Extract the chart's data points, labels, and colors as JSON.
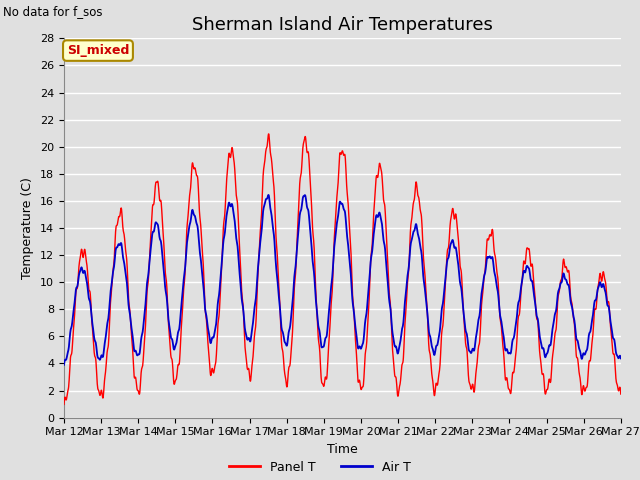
{
  "title": "Sherman Island Air Temperatures",
  "subtitle": "No data for f_sos",
  "xlabel": "Time",
  "ylabel": "Temperature (C)",
  "ylim": [
    0,
    28
  ],
  "yticks": [
    0,
    2,
    4,
    6,
    8,
    10,
    12,
    14,
    16,
    18,
    20,
    22,
    24,
    26,
    28
  ],
  "xtick_labels": [
    "Mar 12",
    "Mar 13",
    "Mar 14",
    "Mar 15",
    "Mar 16",
    "Mar 17",
    "Mar 18",
    "Mar 19",
    "Mar 20",
    "Mar 21",
    "Mar 22",
    "Mar 23",
    "Mar 24",
    "Mar 25",
    "Mar 26",
    "Mar 27"
  ],
  "panel_t_color": "#ff0000",
  "air_t_color": "#0000cc",
  "legend_panel_t": "Panel T",
  "legend_air_t": "Air T",
  "bg_color": "#e0e0e0",
  "plot_bg_color": "#e0e0e0",
  "annotation_text": "SI_mixed",
  "annotation_bg": "#ffffcc",
  "annotation_border": "#aa8800",
  "annotation_text_color": "#cc0000",
  "grid_color": "#ffffff",
  "title_fontsize": 13,
  "label_fontsize": 9,
  "tick_fontsize": 8
}
